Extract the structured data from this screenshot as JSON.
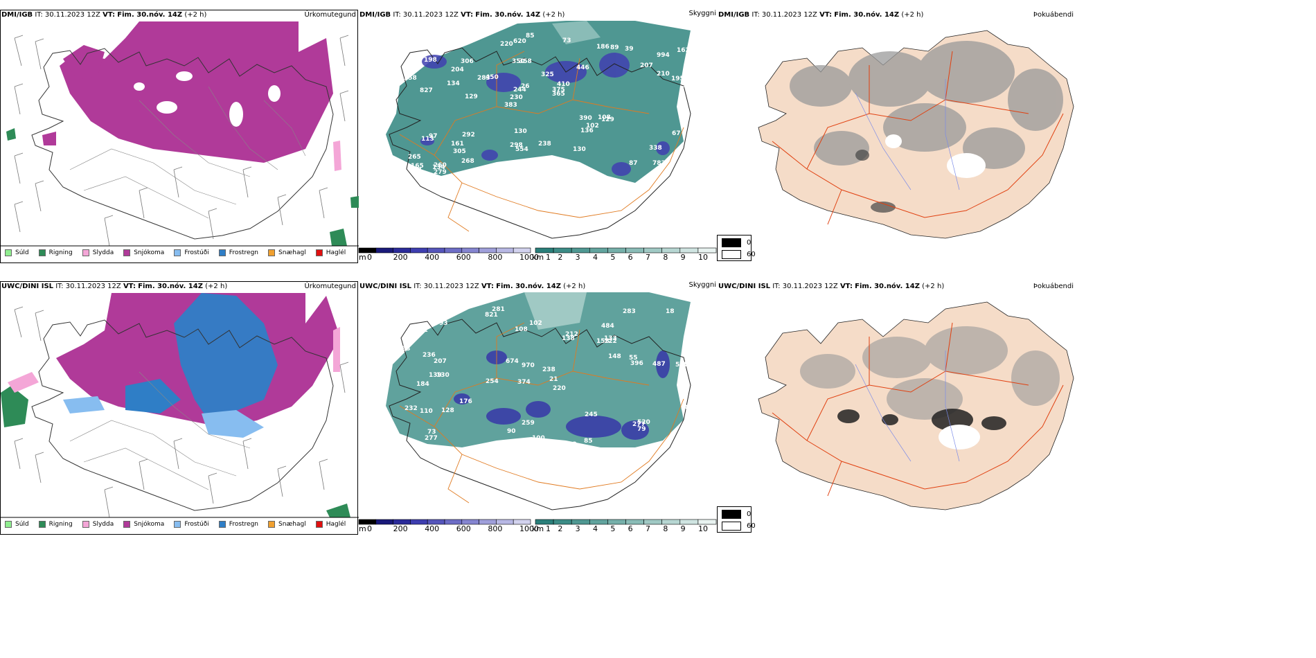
{
  "panels": [
    {
      "model": "DMI/IGB",
      "it_label": "IT:",
      "it_value": "30.11.2023 12Z",
      "vt_label": "VT:",
      "vt_value": "Fim. 30.nóv. 14Z",
      "lead": "(+2 h)",
      "product": "Úrkomutegund"
    },
    {
      "model": "DMI/IGB",
      "it_label": "IT:",
      "it_value": "30.11.2023 12Z",
      "vt_label": "VT:",
      "vt_value": "Fim. 30.nóv. 14Z",
      "lead": "(+2 h)",
      "product": "Skyggni"
    },
    {
      "model": "DMI/IGB",
      "it_label": "IT:",
      "it_value": "30.11.2023 12Z",
      "vt_label": "VT:",
      "vt_value": "Fim. 30.nóv. 14Z",
      "lead": "(+2 h)",
      "product": "Þokuábendi"
    },
    {
      "model": "UWC/DINI ISL",
      "it_label": "IT:",
      "it_value": "30.11.2023 12Z",
      "vt_label": "VT:",
      "vt_value": "Fim. 30.nóv. 14Z",
      "lead": "(+2 h)",
      "product": "Úrkomutegund"
    },
    {
      "model": "UWC/DINI ISL",
      "it_label": "IT:",
      "it_value": "30.11.2023 12Z",
      "vt_label": "VT:",
      "vt_value": "Fim. 30.nóv. 14Z",
      "lead": "(+2 h)",
      "product": "Skyggni"
    },
    {
      "model": "UWC/DINI ISL",
      "it_label": "IT:",
      "it_value": "30.11.2023 12Z",
      "vt_label": "VT:",
      "vt_value": "Fim. 30.nóv. 14Z",
      "lead": "(+2 h)",
      "product": "Þokuábendi"
    }
  ],
  "ptype_legend": [
    {
      "label": "Súld",
      "color": "#90ee90"
    },
    {
      "label": "Rigning",
      "color": "#2e8b57"
    },
    {
      "label": "Slydda",
      "color": "#f4a6d7"
    },
    {
      "label": "Snjókoma",
      "color": "#b03a99"
    },
    {
      "label": "Frostúði",
      "color": "#87bdf0"
    },
    {
      "label": "Frostregn",
      "color": "#2f7ec6"
    },
    {
      "label": "Snæhagl",
      "color": "#f0a030"
    },
    {
      "label": "Haglél",
      "color": "#e01010"
    }
  ],
  "visibility_scale": {
    "m_unit": "m",
    "m_ticks": [
      "0",
      "200",
      "400",
      "600",
      "800",
      "1000"
    ],
    "km_unit": "km",
    "km_ticks": [
      "1",
      "2",
      "3",
      "4",
      "5",
      "6",
      "7",
      "8",
      "9",
      "10"
    ],
    "m_colors": [
      "#000000",
      "#1a1a7a",
      "#2b2b9a",
      "#3e3eb0",
      "#5555bb",
      "#6d6dc6",
      "#8585d0",
      "#9f9fda",
      "#b8b8e4",
      "#d2d2ee"
    ],
    "km_colors": [
      "#2a7f7a",
      "#3c8c86",
      "#4f9892",
      "#62a49e",
      "#76b0aa",
      "#8abcb7",
      "#a0c9c4",
      "#b7d6d2",
      "#cfe4e1",
      "#e8f2f0"
    ]
  },
  "fog_key": [
    {
      "label": "0",
      "color": "#000000"
    },
    {
      "label": "60",
      "color": "#ffffff"
    }
  ],
  "vis_labels_top": [
    "782",
    "827",
    "994",
    "383",
    "446",
    "260",
    "350",
    "325",
    "97",
    "450",
    "265",
    "305",
    "358",
    "410",
    "129",
    "198",
    "620",
    "332",
    "390",
    "210",
    "230",
    "298",
    "244",
    "306",
    "186",
    "292",
    "87",
    "338",
    "108",
    "251",
    "283",
    "134",
    "136",
    "268",
    "195",
    "375",
    "165",
    "554",
    "365",
    "113",
    "207",
    "162",
    "102",
    "130",
    "161",
    "279",
    "202",
    "238",
    "39",
    "85",
    "129",
    "158",
    "204",
    "89",
    "134",
    "73",
    "220",
    "26",
    "67",
    "130"
  ],
  "vis_labels_bottom": [
    "281",
    "484",
    "555",
    "374",
    "220",
    "130",
    "231",
    "158",
    "184",
    "138",
    "238",
    "277",
    "821",
    "254",
    "73",
    "212",
    "259",
    "283",
    "148",
    "176",
    "207",
    "139",
    "264",
    "487",
    "232",
    "236",
    "970",
    "396",
    "520",
    "110",
    "277",
    "212",
    "128",
    "674",
    "245",
    "289",
    "55",
    "90",
    "18",
    "102",
    "73",
    "100",
    "85",
    "93",
    "100",
    "122",
    "79",
    "133",
    "83",
    "21",
    "108"
  ]
}
